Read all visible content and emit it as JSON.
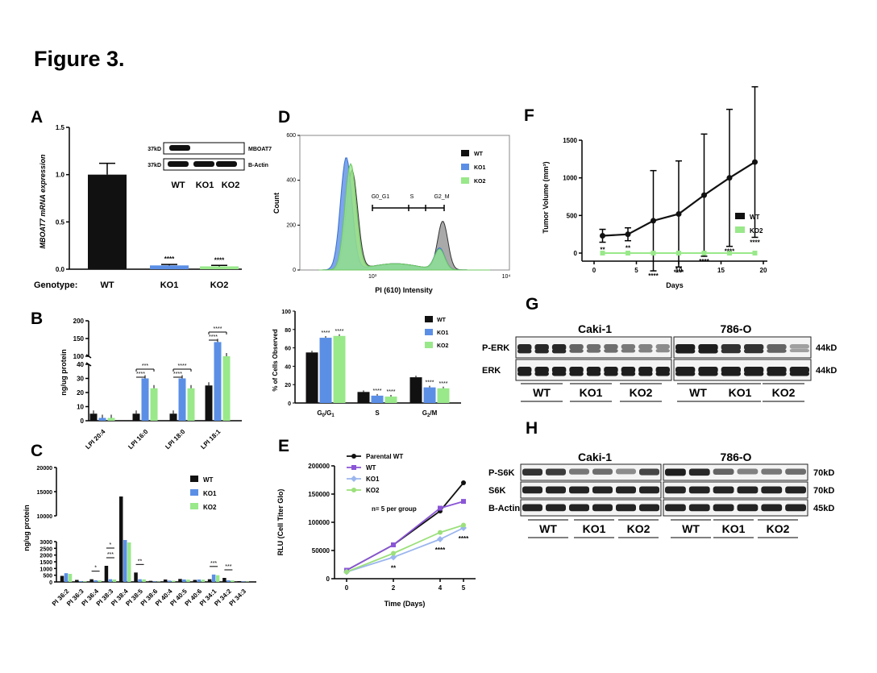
{
  "figure": {
    "title": "Figure 3."
  },
  "colors": {
    "wt": "#111111",
    "ko1": "#5b8fe6",
    "ko2": "#99e88a",
    "parental": "#111111",
    "e_wt": "#8a55d6",
    "e_ko1": "#9bb6ee",
    "e_ko2": "#9be07a",
    "grey": "#9a9a9a"
  },
  "panels": {
    "A": {
      "label": "A",
      "ylabel": "MBOAT7 mRNA expression",
      "genotype_label": "Genotype:",
      "blot": {
        "size": "37kD",
        "rows": [
          "MBOAT7",
          "B-Actin"
        ],
        "lanes": [
          "WT",
          "KO1",
          "KO2"
        ]
      }
    },
    "B": {
      "label": "B",
      "ylabel": "ng/ug protein"
    },
    "C": {
      "label": "C",
      "ylabel": "ng/ug protein",
      "legend": [
        "WT",
        "KO1",
        "KO2"
      ]
    },
    "D": {
      "label": "D",
      "ylabel": "Count",
      "xlabel": "PI (610) Intensity",
      "legend": [
        "WT",
        "KO1",
        "KO2"
      ],
      "gates": [
        "G0_G1",
        "S",
        "G2_M"
      ],
      "xticks": [
        "10³",
        "10⁴"
      ],
      "bar_ylabel": "% of Cells Observed",
      "bar_legend": [
        "WT",
        "KO1",
        "KO2"
      ]
    },
    "E": {
      "label": "E",
      "ylabel": "RLU (Cell Titer Glo)",
      "xlabel": "Time (Days)",
      "legend": [
        "Parental WT",
        "WT",
        "KO1",
        "KO2"
      ],
      "note": "n= 5 per group"
    },
    "F": {
      "label": "F",
      "ylabel": "Tumor Volume (mm³)",
      "xlabel": "Days",
      "legend": [
        "WT",
        "KO2"
      ]
    },
    "G": {
      "label": "G",
      "cells": [
        "Caki-1",
        "786-O"
      ],
      "rows": [
        "P-ERK",
        "ERK"
      ],
      "sizes": [
        "44kD",
        "44kD"
      ],
      "groups": [
        "WT",
        "KO1",
        "KO2",
        "WT",
        "KO1",
        "KO2"
      ]
    },
    "H": {
      "label": "H",
      "cells": [
        "Caki-1",
        "786-O"
      ],
      "rows": [
        "P-S6K",
        "S6K",
        "B-Actin"
      ],
      "sizes": [
        "70kD",
        "70kD",
        "45kD"
      ],
      "groups": [
        "WT",
        "KO1",
        "KO2",
        "WT",
        "KO1",
        "KO2"
      ]
    }
  },
  "chart_data": [
    {
      "panel": "A",
      "type": "bar",
      "categories": [
        "WT",
        "KO1",
        "KO2"
      ],
      "values": [
        1.0,
        0.04,
        0.03
      ],
      "errors": [
        0.12,
        0.01,
        0.01
      ],
      "significance": [
        "",
        "****",
        "****"
      ],
      "ylabel": "MBOAT7 mRNA expression",
      "ylim": [
        0,
        1.5
      ],
      "yticks": [
        "0.0",
        "0.5",
        "1.0",
        "1.5"
      ]
    },
    {
      "panel": "B",
      "type": "bar",
      "categories": [
        "LPI 20:4",
        "LPI 16:0",
        "LPI 18:0",
        "LPI 18:1"
      ],
      "series": [
        {
          "name": "WT",
          "values": [
            5,
            5,
            5,
            25
          ]
        },
        {
          "name": "KO1",
          "values": [
            2,
            30,
            30,
            140
          ]
        },
        {
          "name": "KO2",
          "values": [
            2,
            23,
            23,
            100
          ]
        }
      ],
      "significance": [
        {
          "category": "LPI 16:0",
          "labels": [
            "***",
            "****"
          ]
        },
        {
          "category": "LPI 18:0",
          "labels": [
            "****",
            "****"
          ]
        },
        {
          "category": "LPI 18:1",
          "labels": [
            "****",
            "****"
          ]
        }
      ],
      "ylabel": "ng/ug protein",
      "yticks": [
        "0",
        "10",
        "20",
        "30",
        "40",
        "100",
        "150",
        "200"
      ]
    },
    {
      "panel": "C",
      "type": "bar",
      "categories": [
        "PI 36:2",
        "PI 36:3",
        "PI 36:4",
        "PI 38:3",
        "PI 38:4",
        "PI 38:5",
        "PI 38:6",
        "PI 40:4",
        "PI 40:5",
        "PI 40:6",
        "PI 34:1",
        "PI 34:2",
        "PI 34:3"
      ],
      "series": [
        {
          "name": "WT",
          "values": [
            450,
            150,
            200,
            1200,
            14000,
            700,
            80,
            180,
            220,
            150,
            200,
            300,
            60
          ]
        },
        {
          "name": "KO1",
          "values": [
            650,
            60,
            120,
            200,
            5000,
            200,
            40,
            100,
            180,
            180,
            550,
            120,
            40
          ]
        },
        {
          "name": "KO2",
          "values": [
            600,
            50,
            110,
            180,
            4500,
            190,
            30,
            90,
            170,
            170,
            500,
            110,
            30
          ]
        }
      ],
      "significance": [
        "*",
        "***",
        "*",
        "**",
        "***",
        "***"
      ],
      "ylabel": "ng/ug protein",
      "yticks": [
        "0",
        "500",
        "1000",
        "1500",
        "2000",
        "2500",
        "3000",
        "10000",
        "15000",
        "20000"
      ]
    },
    {
      "panel": "D-histogram",
      "type": "area",
      "series": [
        {
          "name": "WT",
          "peaks": [
            {
              "x": 1.42,
              "height": 440
            },
            {
              "x": 2.85,
              "height": 215
            }
          ]
        },
        {
          "name": "KO1",
          "peaks": [
            {
              "x": 1.33,
              "height": 500
            },
            {
              "x": 2.8,
              "height": 95
            }
          ]
        },
        {
          "name": "KO2",
          "peaks": [
            {
              "x": 1.4,
              "height": 470
            },
            {
              "x": 2.8,
              "height": 90
            }
          ]
        }
      ],
      "xlabel": "PI (610) Intensity",
      "ylabel": "Count",
      "ylim": [
        0,
        600
      ],
      "yticks": [
        "0",
        "200",
        "400",
        "600"
      ]
    },
    {
      "panel": "D-bar",
      "type": "bar",
      "categories": [
        "G0/G1",
        "S",
        "G2/M"
      ],
      "series": [
        {
          "name": "WT",
          "values": [
            55,
            12,
            28
          ]
        },
        {
          "name": "KO1",
          "values": [
            71,
            8,
            17
          ]
        },
        {
          "name": "KO2",
          "values": [
            73,
            7,
            16
          ]
        }
      ],
      "significance": [
        "****",
        "****",
        "****",
        "****",
        "****",
        "****"
      ],
      "ylabel": "% of Cells Observed",
      "ylim": [
        0,
        100
      ],
      "yticks": [
        "0",
        "20",
        "40",
        "60",
        "80",
        "100"
      ]
    },
    {
      "panel": "E",
      "type": "line",
      "x": [
        0,
        2,
        4,
        5
      ],
      "series": [
        {
          "name": "Parental WT",
          "values": [
            15000,
            60000,
            120000,
            170000
          ]
        },
        {
          "name": "WT",
          "values": [
            15000,
            60000,
            125000,
            137000
          ]
        },
        {
          "name": "KO1",
          "values": [
            12000,
            38000,
            70000,
            90000
          ]
        },
        {
          "name": "KO2",
          "values": [
            12000,
            45000,
            82000,
            95000
          ]
        }
      ],
      "significance": [
        "",
        "**",
        "****",
        "****"
      ],
      "xlabel": "Time (Days)",
      "ylabel": "RLU (Cell Titer Glo)",
      "ylim": [
        0,
        200000
      ],
      "yticks": [
        "0",
        "50000",
        "100000",
        "150000",
        "200000"
      ],
      "xticks": [
        "0",
        "2",
        "4",
        "5"
      ]
    },
    {
      "panel": "F",
      "type": "line",
      "x": [
        1,
        4,
        7,
        10,
        13,
        16,
        19
      ],
      "series": [
        {
          "name": "WT",
          "values": [
            230,
            250,
            430,
            520,
            770,
            1000,
            1210
          ]
        },
        {
          "name": "KO2",
          "values": [
            0,
            0,
            0,
            0,
            0,
            0,
            0
          ]
        }
      ],
      "significance": [
        "**",
        "**",
        "****",
        "****",
        "****",
        "****",
        "****"
      ],
      "xlabel": "Days",
      "ylabel": "Tumor Volume (mm³)",
      "ylim": [
        0,
        1500
      ],
      "yticks": [
        "0",
        "500",
        "1000",
        "1500"
      ],
      "xticks": [
        "0",
        "5",
        "10",
        "15",
        "20"
      ]
    }
  ]
}
